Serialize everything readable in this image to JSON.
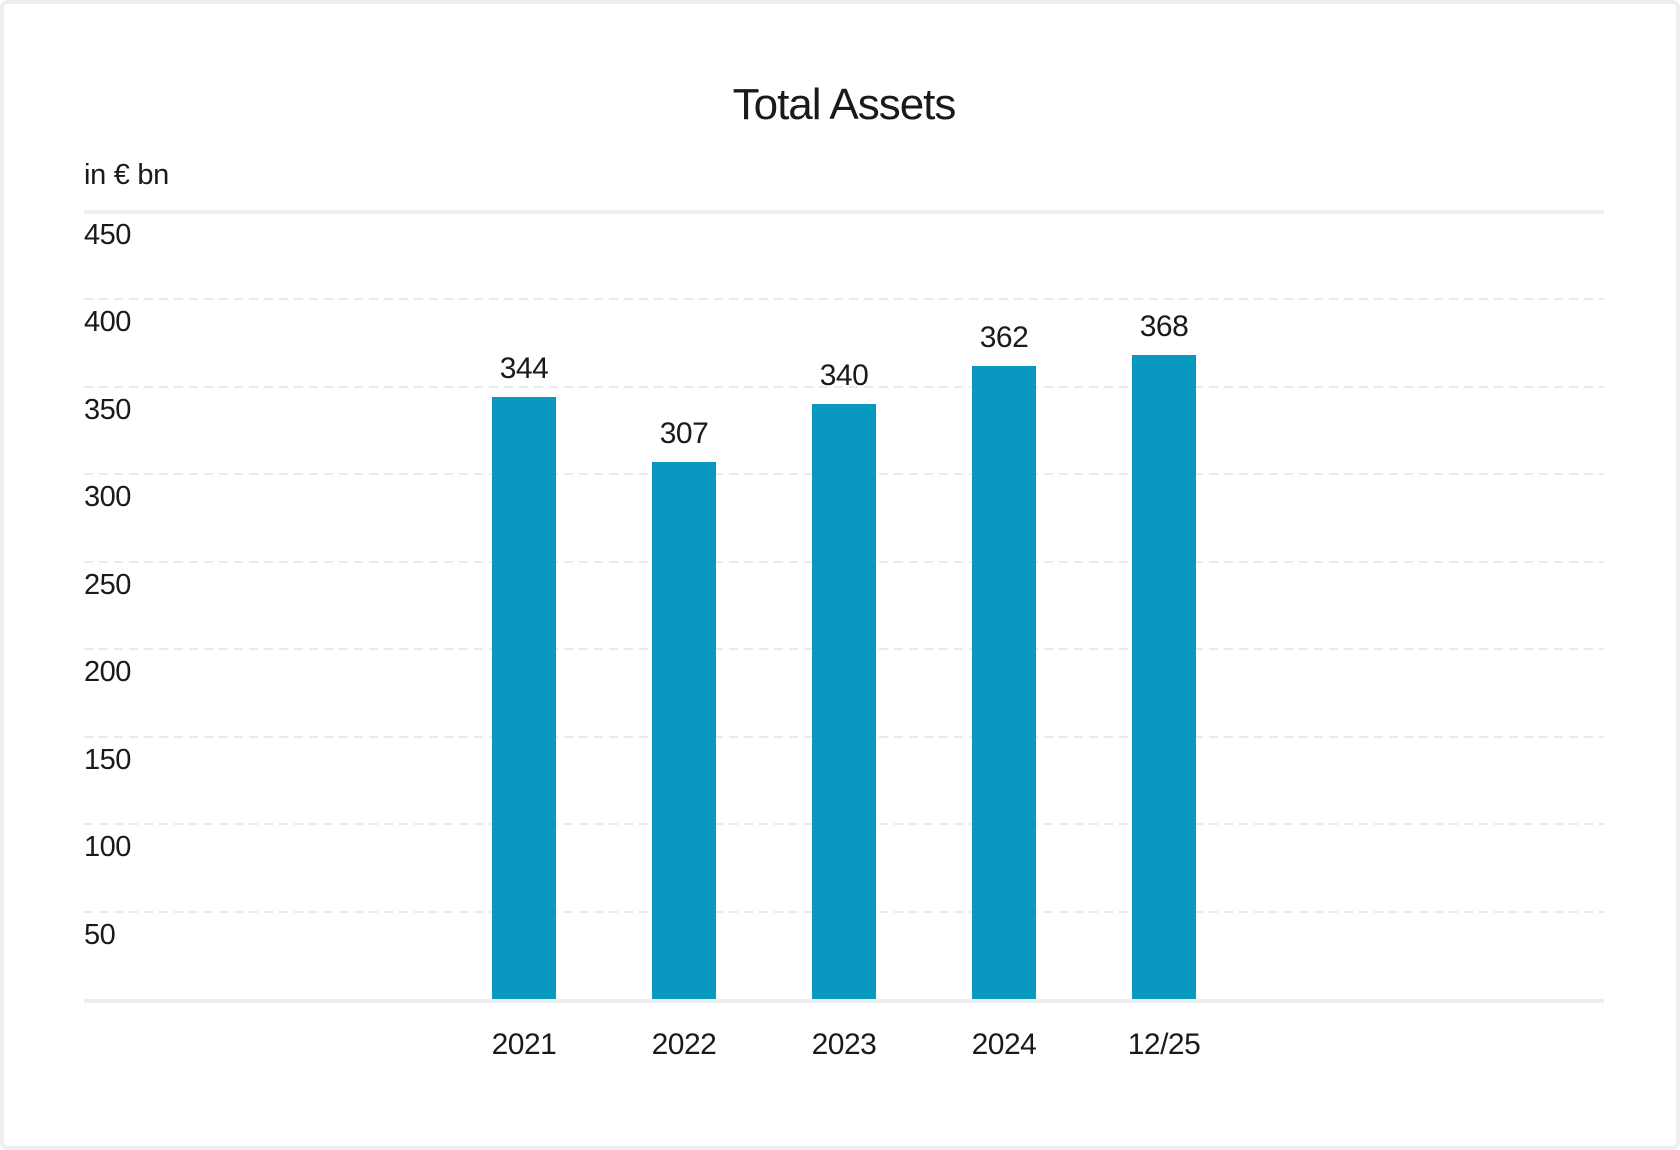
{
  "chart_data": {
    "type": "bar",
    "title": "Total Assets",
    "unit_label": "in € bn",
    "categories": [
      "2021",
      "2022",
      "2023",
      "2024",
      "12/25"
    ],
    "values": [
      344,
      307,
      340,
      362,
      368
    ],
    "yticks": [
      450,
      400,
      350,
      300,
      250,
      200,
      150,
      100,
      50
    ],
    "ylim": [
      0,
      450
    ],
    "bar_color": "#0999C0",
    "text_color": "#1a1a1a",
    "gridline_color": "#e9eaeb",
    "axis_line_color": "#ecedef",
    "grid": "horizontal, dashed between top and baseline, solid at 450 and 0",
    "legend": "none",
    "value_labels_position": "above bars"
  }
}
